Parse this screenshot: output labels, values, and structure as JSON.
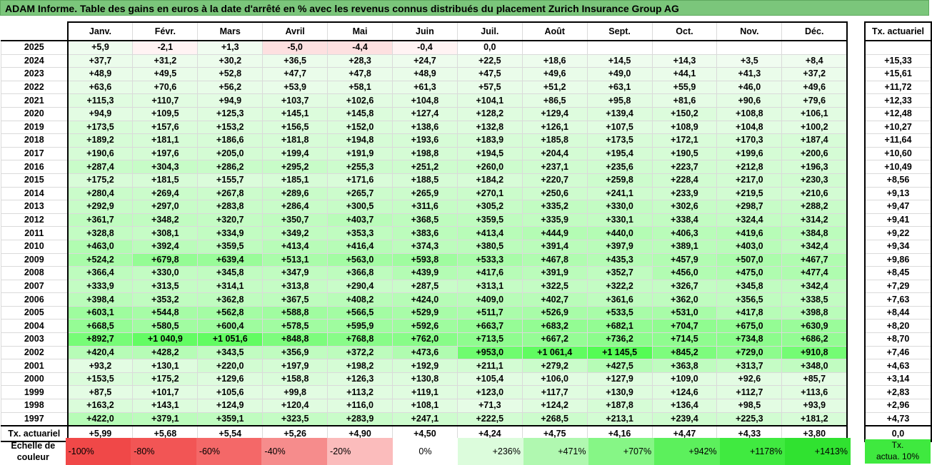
{
  "title": "ADAM Informe. Table des gains en euros à la date d'arrêté en % avec les revenus connus distribués du placement Zurich Insurance Group AG",
  "months": [
    "Janv.",
    "Févr.",
    "Mars",
    "Avril",
    "Mai",
    "Juin",
    "Juil.",
    "Août",
    "Sept.",
    "Oct.",
    "Nov.",
    "Déc."
  ],
  "act_header": "Tx. actuariel",
  "rows": [
    {
      "year": "2025",
      "vals": [
        "+5,9",
        "-2,1",
        "+1,3",
        "-5,0",
        "-4,4",
        "-0,4",
        "0,0",
        "",
        "",
        "",
        "",
        ""
      ],
      "act": ""
    },
    {
      "year": "2024",
      "vals": [
        "+37,7",
        "+31,2",
        "+30,2",
        "+36,5",
        "+28,3",
        "+24,7",
        "+22,5",
        "+18,6",
        "+14,5",
        "+14,3",
        "+3,5",
        "+8,4"
      ],
      "act": "+15,33"
    },
    {
      "year": "2023",
      "vals": [
        "+48,9",
        "+49,5",
        "+52,8",
        "+47,7",
        "+47,8",
        "+48,9",
        "+47,5",
        "+49,6",
        "+49,0",
        "+44,1",
        "+41,3",
        "+37,2"
      ],
      "act": "+15,61"
    },
    {
      "year": "2022",
      "vals": [
        "+63,6",
        "+70,6",
        "+56,2",
        "+53,9",
        "+58,1",
        "+61,3",
        "+57,5",
        "+51,2",
        "+63,1",
        "+55,9",
        "+46,0",
        "+49,6"
      ],
      "act": "+11,72"
    },
    {
      "year": "2021",
      "vals": [
        "+115,3",
        "+110,7",
        "+94,9",
        "+103,7",
        "+102,6",
        "+104,8",
        "+104,1",
        "+86,5",
        "+95,8",
        "+81,6",
        "+90,6",
        "+79,6"
      ],
      "act": "+12,33"
    },
    {
      "year": "2020",
      "vals": [
        "+94,9",
        "+109,5",
        "+125,3",
        "+145,1",
        "+145,8",
        "+127,4",
        "+128,2",
        "+129,4",
        "+139,4",
        "+150,2",
        "+108,8",
        "+106,1"
      ],
      "act": "+12,48"
    },
    {
      "year": "2019",
      "vals": [
        "+173,5",
        "+157,6",
        "+153,2",
        "+156,5",
        "+152,0",
        "+138,6",
        "+132,8",
        "+126,1",
        "+107,5",
        "+108,9",
        "+104,8",
        "+100,2"
      ],
      "act": "+10,27"
    },
    {
      "year": "2018",
      "vals": [
        "+189,2",
        "+181,1",
        "+186,6",
        "+181,8",
        "+194,8",
        "+193,6",
        "+183,9",
        "+185,8",
        "+173,5",
        "+172,1",
        "+170,3",
        "+187,4"
      ],
      "act": "+11,64"
    },
    {
      "year": "2017",
      "vals": [
        "+190,6",
        "+197,6",
        "+205,0",
        "+199,4",
        "+191,9",
        "+198,8",
        "+194,5",
        "+204,4",
        "+195,4",
        "+190,5",
        "+199,6",
        "+200,6"
      ],
      "act": "+10,60"
    },
    {
      "year": "2016",
      "vals": [
        "+287,4",
        "+304,3",
        "+286,2",
        "+295,2",
        "+255,3",
        "+251,2",
        "+260,0",
        "+237,1",
        "+235,6",
        "+223,7",
        "+212,8",
        "+196,3"
      ],
      "act": "+10,49"
    },
    {
      "year": "2015",
      "vals": [
        "+175,2",
        "+181,5",
        "+155,7",
        "+185,1",
        "+171,6",
        "+188,5",
        "+184,2",
        "+220,7",
        "+259,8",
        "+228,4",
        "+217,0",
        "+230,3"
      ],
      "act": "+8,56"
    },
    {
      "year": "2014",
      "vals": [
        "+280,4",
        "+269,4",
        "+267,8",
        "+289,6",
        "+265,7",
        "+265,9",
        "+270,1",
        "+250,6",
        "+241,1",
        "+233,9",
        "+219,5",
        "+210,6"
      ],
      "act": "+9,13"
    },
    {
      "year": "2013",
      "vals": [
        "+292,9",
        "+297,0",
        "+283,8",
        "+286,4",
        "+300,5",
        "+311,6",
        "+305,2",
        "+335,2",
        "+330,0",
        "+302,6",
        "+298,7",
        "+288,2"
      ],
      "act": "+9,47"
    },
    {
      "year": "2012",
      "vals": [
        "+361,7",
        "+348,2",
        "+320,7",
        "+350,7",
        "+403,7",
        "+368,5",
        "+359,5",
        "+335,9",
        "+330,1",
        "+338,4",
        "+324,4",
        "+314,2"
      ],
      "act": "+9,41"
    },
    {
      "year": "2011",
      "vals": [
        "+328,8",
        "+308,1",
        "+334,9",
        "+349,2",
        "+353,3",
        "+383,6",
        "+413,4",
        "+444,9",
        "+440,0",
        "+406,3",
        "+419,6",
        "+384,8"
      ],
      "act": "+9,22"
    },
    {
      "year": "2010",
      "vals": [
        "+463,0",
        "+392,4",
        "+359,5",
        "+413,4",
        "+416,4",
        "+374,3",
        "+380,5",
        "+391,4",
        "+397,9",
        "+389,1",
        "+403,0",
        "+342,4"
      ],
      "act": "+9,34"
    },
    {
      "year": "2009",
      "vals": [
        "+524,2",
        "+679,8",
        "+639,4",
        "+513,1",
        "+563,0",
        "+593,8",
        "+533,3",
        "+467,8",
        "+435,3",
        "+457,9",
        "+507,0",
        "+467,7"
      ],
      "act": "+9,86"
    },
    {
      "year": "2008",
      "vals": [
        "+366,4",
        "+330,0",
        "+345,8",
        "+347,9",
        "+366,8",
        "+439,9",
        "+417,6",
        "+391,9",
        "+352,7",
        "+456,0",
        "+475,0",
        "+477,4"
      ],
      "act": "+8,45"
    },
    {
      "year": "2007",
      "vals": [
        "+333,9",
        "+313,5",
        "+314,1",
        "+313,8",
        "+290,4",
        "+287,5",
        "+313,1",
        "+322,5",
        "+322,2",
        "+326,7",
        "+345,8",
        "+342,4"
      ],
      "act": "+7,29"
    },
    {
      "year": "2006",
      "vals": [
        "+398,4",
        "+353,2",
        "+362,8",
        "+367,5",
        "+408,2",
        "+424,0",
        "+409,0",
        "+402,7",
        "+361,6",
        "+362,0",
        "+356,5",
        "+338,5"
      ],
      "act": "+7,63"
    },
    {
      "year": "2005",
      "vals": [
        "+603,1",
        "+544,8",
        "+562,8",
        "+588,8",
        "+566,5",
        "+529,9",
        "+511,7",
        "+526,9",
        "+533,5",
        "+531,0",
        "+417,8",
        "+398,8"
      ],
      "act": "+8,44"
    },
    {
      "year": "2004",
      "vals": [
        "+668,5",
        "+580,5",
        "+600,4",
        "+578,5",
        "+595,9",
        "+592,6",
        "+663,7",
        "+683,2",
        "+682,1",
        "+704,7",
        "+675,0",
        "+630,9"
      ],
      "act": "+8,20"
    },
    {
      "year": "2003",
      "vals": [
        "+892,7",
        "+1 040,9",
        "+1 051,6",
        "+848,8",
        "+768,8",
        "+762,0",
        "+713,5",
        "+667,2",
        "+736,2",
        "+714,5",
        "+734,8",
        "+686,2"
      ],
      "act": "+8,70"
    },
    {
      "year": "2002",
      "vals": [
        "+420,4",
        "+428,2",
        "+343,5",
        "+356,9",
        "+372,2",
        "+473,6",
        "+953,0",
        "+1 061,4",
        "+1 145,5",
        "+845,2",
        "+729,0",
        "+910,8"
      ],
      "act": "+7,46"
    },
    {
      "year": "2001",
      "vals": [
        "+93,2",
        "+130,1",
        "+220,0",
        "+197,9",
        "+198,2",
        "+192,9",
        "+211,1",
        "+279,2",
        "+427,5",
        "+363,8",
        "+313,7",
        "+348,0"
      ],
      "act": "+4,63"
    },
    {
      "year": "2000",
      "vals": [
        "+153,5",
        "+175,2",
        "+129,6",
        "+158,8",
        "+126,3",
        "+130,8",
        "+105,4",
        "+106,0",
        "+127,9",
        "+109,0",
        "+92,6",
        "+85,7"
      ],
      "act": "+3,14"
    },
    {
      "year": "1999",
      "vals": [
        "+87,5",
        "+101,7",
        "+105,6",
        "+99,8",
        "+113,2",
        "+119,1",
        "+123,0",
        "+117,7",
        "+130,9",
        "+124,6",
        "+112,7",
        "+113,6"
      ],
      "act": "+2,83"
    },
    {
      "year": "1998",
      "vals": [
        "+163,2",
        "+143,1",
        "+124,9",
        "+120,4",
        "+116,0",
        "+108,1",
        "+71,3",
        "+124,2",
        "+187,8",
        "+136,4",
        "+98,5",
        "+93,9"
      ],
      "act": "+2,96"
    },
    {
      "year": "1997",
      "vals": [
        "+422,0",
        "+379,1",
        "+359,1",
        "+323,5",
        "+283,9",
        "+247,1",
        "+222,5",
        "+268,5",
        "+213,1",
        "+239,4",
        "+225,3",
        "+181,2"
      ],
      "act": "+4,73"
    }
  ],
  "footer": {
    "label": "Tx. actuariel",
    "vals": [
      "+5,99",
      "+5,68",
      "+5,54",
      "+5,26",
      "+4,90",
      "+4,50",
      "+4,24",
      "+4,75",
      "+4,16",
      "+4,47",
      "+4,33",
      "+3,80"
    ],
    "act": "0,0"
  },
  "scale": {
    "label_line1": "Echelle de",
    "label_line2": "couleur",
    "items": [
      {
        "text": "-100%",
        "color": "#f04848",
        "align": "left"
      },
      {
        "text": "-80%",
        "color": "#f25555",
        "align": "left"
      },
      {
        "text": "-60%",
        "color": "#f46868",
        "align": "left"
      },
      {
        "text": "-40%",
        "color": "#f68c8c",
        "align": "left"
      },
      {
        "text": "-20%",
        "color": "#fbbcbc",
        "align": "left"
      },
      {
        "text": "0%",
        "color": "#ffffff",
        "align": "center"
      },
      {
        "text": "+236%",
        "color": "#dcfcdc",
        "align": "right"
      },
      {
        "text": "+471%",
        "color": "#b0f8b0",
        "align": "right"
      },
      {
        "text": "+707%",
        "color": "#86f686",
        "align": "right"
      },
      {
        "text": "+942%",
        "color": "#5cf05c",
        "align": "right"
      },
      {
        "text": "+1178%",
        "color": "#40ea40",
        "align": "right"
      },
      {
        "text": "+1413%",
        "color": "#30e230",
        "align": "right"
      }
    ],
    "act_box_line1": "Tx.",
    "act_box_line2": "actua. 10%",
    "act_box_color": "#3fe93f"
  }
}
